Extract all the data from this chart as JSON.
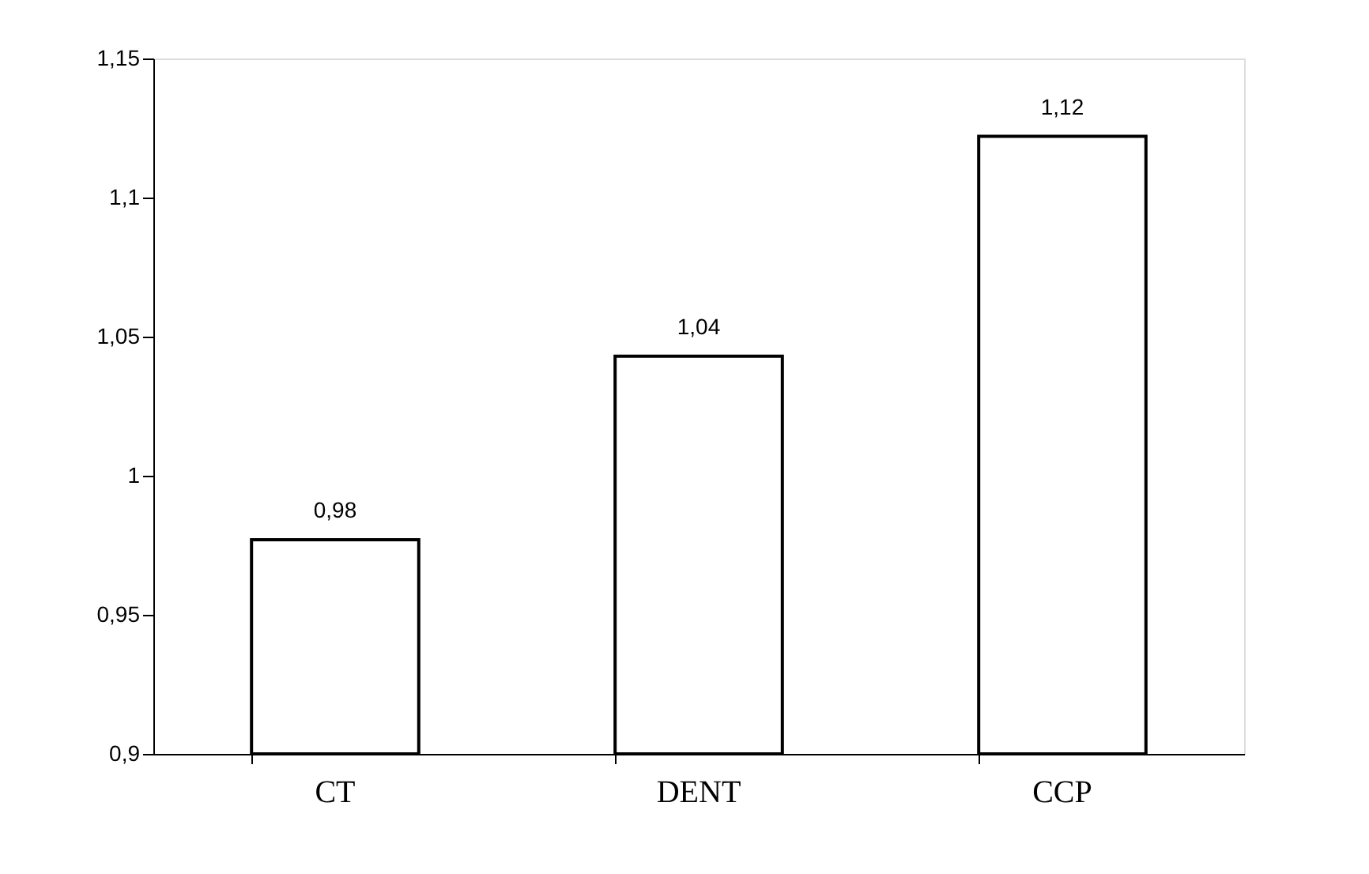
{
  "chart_data": {
    "type": "bar",
    "categories": [
      "CT",
      "DENT",
      "CCP"
    ],
    "values": [
      0.977,
      1.043,
      1.122
    ],
    "value_labels": [
      "0,98",
      "1,04",
      "1,12"
    ],
    "color": "#ffffff",
    "ylim": [
      0.9,
      1.15
    ],
    "yticks": [
      {
        "value": 0.9,
        "label": "0,9"
      },
      {
        "value": 0.95,
        "label": "0,95"
      },
      {
        "value": 1,
        "label": "1"
      },
      {
        "value": 1.05,
        "label": "1,05"
      },
      {
        "value": 1.1,
        "label": "1,1"
      },
      {
        "value": 1.15,
        "label": "1,15"
      }
    ],
    "grid": false
  }
}
